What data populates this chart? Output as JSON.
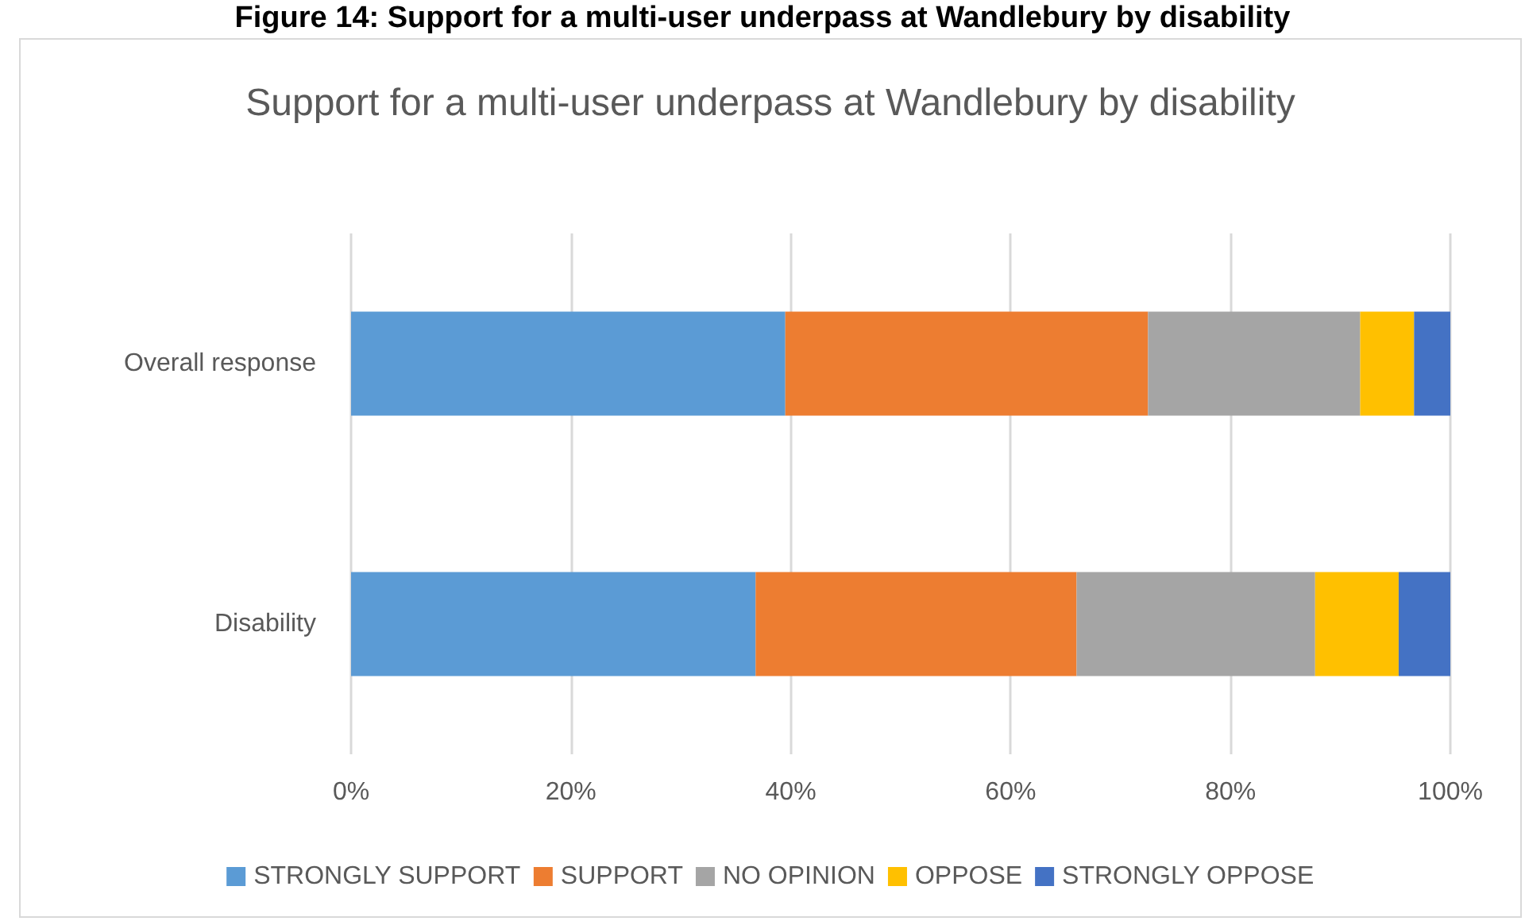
{
  "chart_data": {
    "type": "bar",
    "orientation": "horizontal",
    "stacked": true,
    "title": "Support for a multi-user underpass at Wandlebury by disability",
    "annotations": [
      "Figure 14: Support for a multi-user underpass at Wandlebury by disability"
    ],
    "categories": [
      "Overall response",
      "Disability"
    ],
    "series": [
      {
        "name": "STRONGLY SUPPORT",
        "color": "#5b9bd5",
        "values": [
          39.5,
          36.8
        ]
      },
      {
        "name": "SUPPORT",
        "color": "#ed7d31",
        "values": [
          33.0,
          29.2
        ]
      },
      {
        "name": "NO OPINION",
        "color": "#a5a5a5",
        "values": [
          19.3,
          21.7
        ]
      },
      {
        "name": "OPPOSE",
        "color": "#ffc000",
        "values": [
          4.9,
          7.6
        ]
      },
      {
        "name": "STRONGLY OPPOSE",
        "color": "#4472c4",
        "values": [
          3.3,
          4.7
        ]
      }
    ],
    "xlim": [
      0,
      100
    ],
    "xticks": [
      {
        "value": 0,
        "label": "0%"
      },
      {
        "value": 20,
        "label": "20%"
      },
      {
        "value": 40,
        "label": "40%"
      },
      {
        "value": 60,
        "label": "60%"
      },
      {
        "value": 80,
        "label": "80%"
      },
      {
        "value": 100,
        "label": "100%"
      }
    ],
    "grid": "x",
    "legend": "bottom"
  }
}
